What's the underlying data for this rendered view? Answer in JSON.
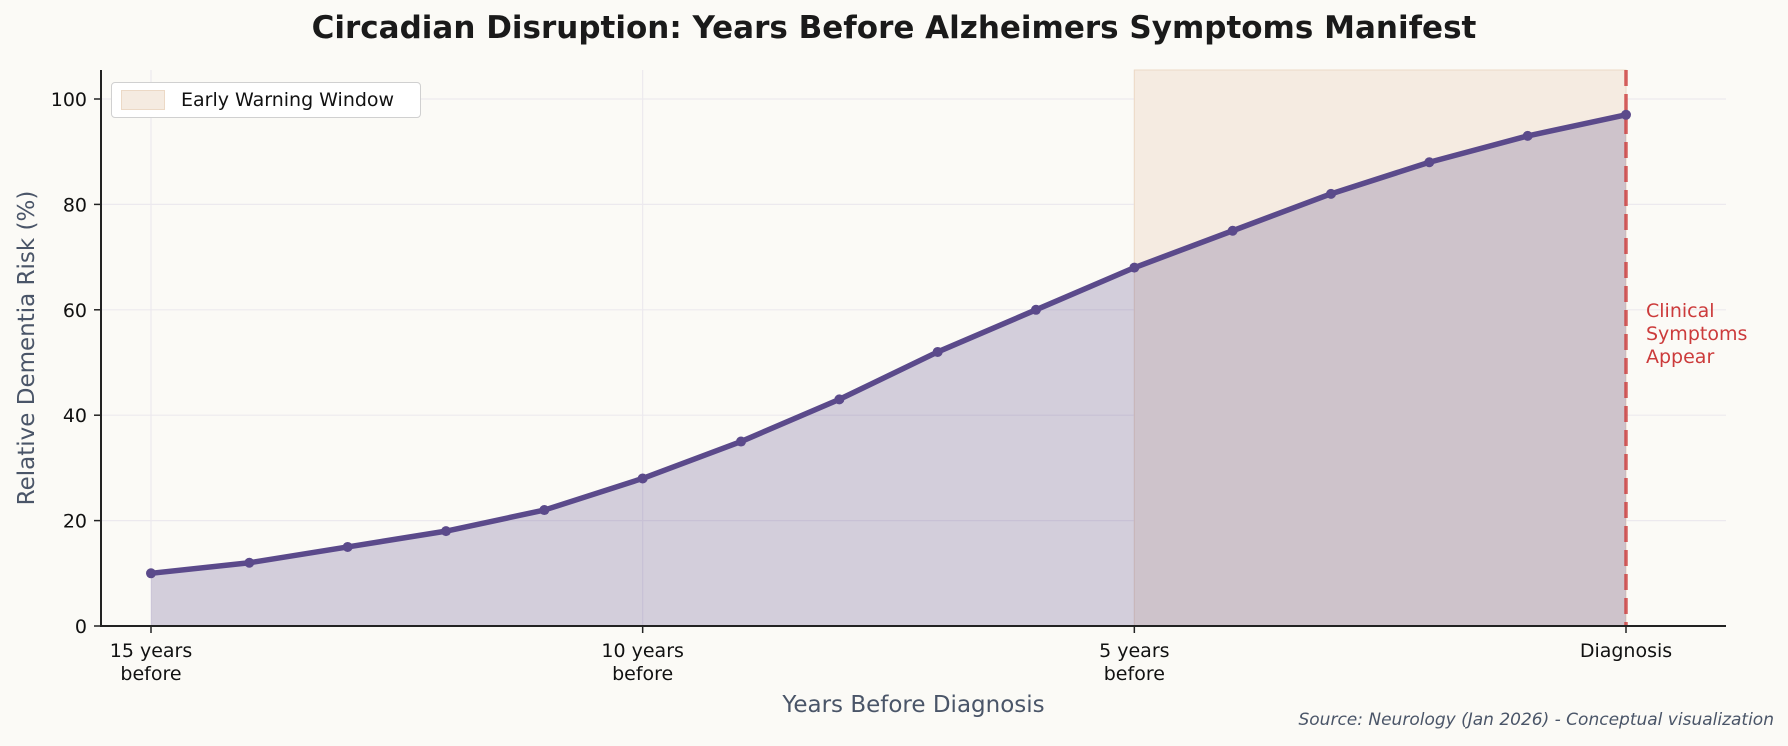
{
  "chart_data": {
    "type": "area",
    "title": "Circadian Disruption: Years Before Alzheimers Symptoms Manifest",
    "xlabel": "Years Before Diagnosis",
    "ylabel": "Relative Dementia Risk (%)",
    "x": [
      15,
      14,
      13,
      12,
      11,
      10,
      9,
      8,
      7,
      6,
      5,
      4,
      3,
      2,
      1,
      0
    ],
    "series": [
      {
        "name": "Relative Dementia Risk",
        "values": [
          10,
          12,
          15,
          18,
          22,
          28,
          35,
          43,
          52,
          60,
          68,
          75,
          82,
          88,
          93,
          97
        ],
        "color": "#5b4a8b"
      }
    ],
    "ylim": [
      0,
      105
    ],
    "yticks": [
      0,
      20,
      40,
      60,
      80,
      100
    ],
    "xticks": [
      {
        "value": 15,
        "label": [
          "15 years",
          "before"
        ]
      },
      {
        "value": 10,
        "label": [
          "10 years",
          "before"
        ]
      },
      {
        "value": 5,
        "label": [
          "5 years",
          "before"
        ]
      },
      {
        "value": 0,
        "label": [
          "Diagnosis"
        ]
      }
    ],
    "shaded_region": {
      "label": "Early Warning Window",
      "x_from": 5,
      "x_to": 0,
      "color": "#f5ebe1"
    },
    "vline": {
      "x": 0,
      "style": "dashed",
      "color": "#cc3b3b"
    },
    "annotations": [
      {
        "text": [
          "Clinical",
          "Symptoms",
          "Appear"
        ],
        "x": 0,
        "y": 55,
        "color": "#cc3b3b"
      }
    ],
    "legend": {
      "position": "upper left",
      "entries": [
        "Early Warning Window"
      ]
    },
    "grid": true
  },
  "source": "Source: Neurology (Jan 2026) - Conceptual visualization"
}
